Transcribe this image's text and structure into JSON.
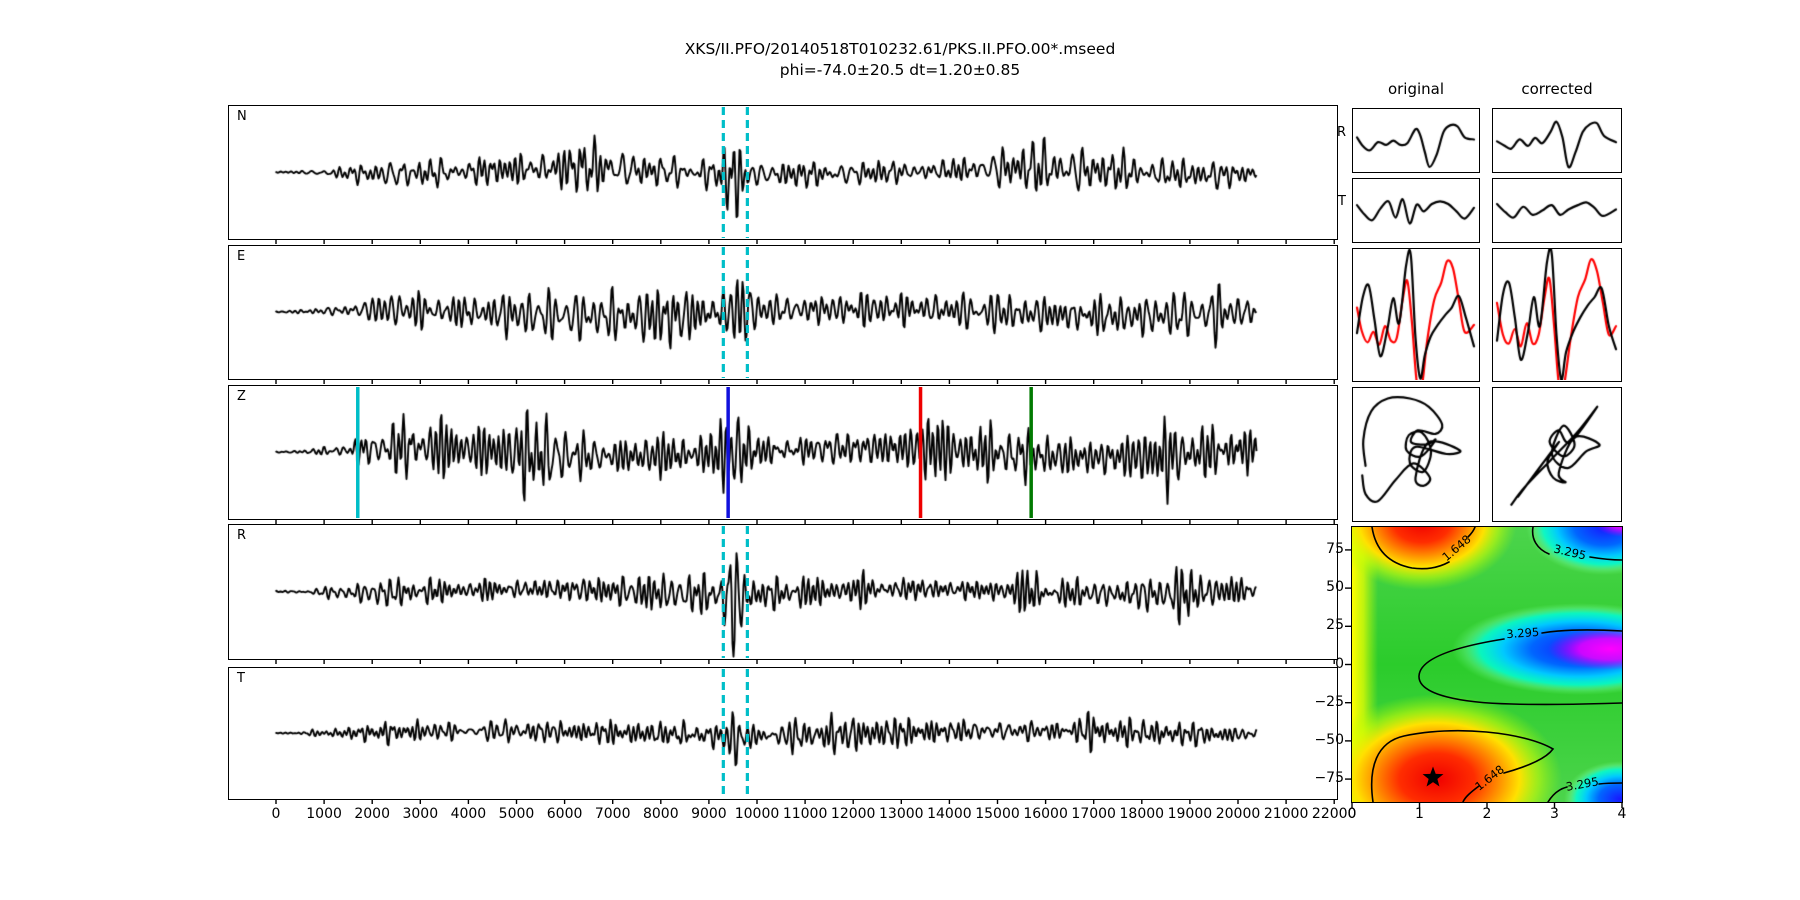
{
  "figure": {
    "title_line1": "XKS/II.PFO/20140518T010232.61/PKS.II.PFO.00*.mseed",
    "title_line2": "phi=-74.0±20.5 dt=1.20±0.85"
  },
  "chart_data": [
    {
      "id": "waveform_panels",
      "type": "line",
      "title": "seismogram component panels",
      "x_unit": "samples",
      "xlim": [
        -1020,
        22200
      ],
      "x_ticks": [
        0,
        1000,
        2000,
        3000,
        4000,
        5000,
        6000,
        7000,
        8000,
        9000,
        10000,
        11000,
        12000,
        13000,
        14000,
        15000,
        16000,
        17000,
        18000,
        19000,
        20000,
        21000,
        22000
      ],
      "trace_color": "#000000",
      "trace_length": 20400,
      "window_lines": {
        "style": "dashed",
        "color": "#00bec8",
        "x": [
          9300,
          9800
        ],
        "panels": [
          "N",
          "E",
          "R",
          "T"
        ]
      },
      "z_marker_lines": [
        {
          "x": 1700,
          "color": "#00bec8"
        },
        {
          "x": 9400,
          "color": "#1111dd"
        },
        {
          "x": 13400,
          "color": "#ee0000"
        },
        {
          "x": 15700,
          "color": "#007a00"
        }
      ],
      "panels": [
        {
          "label": "N",
          "seed": 11,
          "amp": 15,
          "bursts": [
            [
              9550,
              2.4,
              170
            ],
            [
              6500,
              0.7,
              400
            ],
            [
              15500,
              0.5,
              600
            ]
          ]
        },
        {
          "label": "E",
          "seed": 23,
          "amp": 19,
          "bursts": [
            [
              8300,
              1.2,
              300
            ],
            [
              9600,
              2.0,
              160
            ],
            [
              13500,
              0.5,
              500
            ]
          ]
        },
        {
          "label": "Z",
          "seed": 37,
          "amp": 24,
          "bursts": [
            [
              5300,
              1.5,
              300
            ],
            [
              9500,
              1.1,
              250
            ],
            [
              13800,
              0.6,
              400
            ],
            [
              18500,
              0.9,
              300
            ],
            [
              20000,
              1.0,
              250
            ]
          ]
        },
        {
          "label": "R",
          "seed": 53,
          "amp": 15,
          "bursts": [
            [
              9550,
              2.6,
              150
            ],
            [
              15800,
              0.9,
              400
            ],
            [
              18800,
              0.8,
              300
            ]
          ]
        },
        {
          "label": "T",
          "seed": 71,
          "amp": 13,
          "bursts": [
            [
              9550,
              1.5,
              180
            ],
            [
              17000,
              0.6,
              400
            ]
          ]
        }
      ]
    },
    {
      "id": "waveform_comparison",
      "type": "line",
      "col_headers": [
        "original",
        "corrected"
      ],
      "row_labels": [
        "R",
        "T"
      ],
      "colors": {
        "fast": "#000000",
        "slow": "#ff0000"
      },
      "mini": {
        "R_original": [
          [
            0,
            0.1
          ],
          [
            0.05,
            -0.22
          ],
          [
            0.11,
            -0.38
          ],
          [
            0.18,
            -0.08
          ],
          [
            0.25,
            -0.18
          ],
          [
            0.31,
            -0.02
          ],
          [
            0.37,
            -0.18
          ],
          [
            0.43,
            -0.12
          ],
          [
            0.5,
            0.4
          ],
          [
            0.54,
            0.18
          ],
          [
            0.58,
            -0.45
          ],
          [
            0.62,
            -1.0
          ],
          [
            0.68,
            -0.55
          ],
          [
            0.74,
            0.3
          ],
          [
            0.8,
            0.55
          ],
          [
            0.86,
            0.5
          ],
          [
            0.92,
            0.1
          ],
          [
            1,
            0.02
          ]
        ],
        "R_corrected": [
          [
            0,
            -0.05
          ],
          [
            0.06,
            -0.2
          ],
          [
            0.12,
            -0.32
          ],
          [
            0.19,
            0.02
          ],
          [
            0.26,
            -0.22
          ],
          [
            0.32,
            0.08
          ],
          [
            0.38,
            -0.12
          ],
          [
            0.45,
            0.3
          ],
          [
            0.5,
            0.68
          ],
          [
            0.55,
            0.1
          ],
          [
            0.6,
            -1.0
          ],
          [
            0.66,
            -0.45
          ],
          [
            0.72,
            0.3
          ],
          [
            0.78,
            0.58
          ],
          [
            0.84,
            0.62
          ],
          [
            0.9,
            0.15
          ],
          [
            1,
            -0.08
          ]
        ],
        "T_original": [
          [
            0,
            0.18
          ],
          [
            0.06,
            -0.15
          ],
          [
            0.13,
            -0.38
          ],
          [
            0.2,
            0.05
          ],
          [
            0.27,
            0.32
          ],
          [
            0.33,
            -0.28
          ],
          [
            0.39,
            0.4
          ],
          [
            0.45,
            -0.5
          ],
          [
            0.51,
            0.2
          ],
          [
            0.57,
            -0.05
          ],
          [
            0.64,
            0.22
          ],
          [
            0.71,
            0.32
          ],
          [
            0.78,
            0.22
          ],
          [
            0.85,
            -0.05
          ],
          [
            0.92,
            -0.32
          ],
          [
            1,
            0.08
          ]
        ],
        "T_corrected": [
          [
            0,
            0.22
          ],
          [
            0.07,
            -0.08
          ],
          [
            0.14,
            -0.28
          ],
          [
            0.22,
            0.12
          ],
          [
            0.3,
            -0.18
          ],
          [
            0.38,
            -0.02
          ],
          [
            0.46,
            0.18
          ],
          [
            0.53,
            -0.18
          ],
          [
            0.6,
            0.02
          ],
          [
            0.68,
            0.18
          ],
          [
            0.75,
            0.28
          ],
          [
            0.82,
            0.08
          ],
          [
            0.89,
            -0.22
          ],
          [
            1,
            0.02
          ]
        ],
        "overlay_original": {
          "black": [
            [
              0,
              -0.32
            ],
            [
              0.05,
              0.3
            ],
            [
              0.1,
              0.5
            ],
            [
              0.15,
              -0.1
            ],
            [
              0.2,
              -0.72
            ],
            [
              0.26,
              -0.25
            ],
            [
              0.31,
              0.28
            ],
            [
              0.36,
              -0.15
            ],
            [
              0.42,
              0.85
            ],
            [
              0.46,
              1.02
            ],
            [
              0.5,
              -0.4
            ],
            [
              0.54,
              -1.1
            ],
            [
              0.58,
              -0.7
            ],
            [
              0.63,
              -0.38
            ],
            [
              0.69,
              -0.18
            ],
            [
              0.75,
              -0.02
            ],
            [
              0.81,
              0.12
            ],
            [
              0.87,
              0.32
            ],
            [
              0.93,
              -0.05
            ],
            [
              1,
              -0.55
            ]
          ],
          "red": [
            [
              0,
              0.12
            ],
            [
              0.04,
              -0.28
            ],
            [
              0.09,
              -0.48
            ],
            [
              0.14,
              -0.3
            ],
            [
              0.19,
              -0.52
            ],
            [
              0.24,
              -0.2
            ],
            [
              0.29,
              -0.45
            ],
            [
              0.34,
              -0.4
            ],
            [
              0.39,
              0.25
            ],
            [
              0.43,
              0.58
            ],
            [
              0.47,
              -0.15
            ],
            [
              0.51,
              -1.15
            ],
            [
              0.55,
              -1.3
            ],
            [
              0.6,
              -0.45
            ],
            [
              0.66,
              0.25
            ],
            [
              0.72,
              0.55
            ],
            [
              0.77,
              0.92
            ],
            [
              0.82,
              0.8
            ],
            [
              0.87,
              0.25
            ],
            [
              0.92,
              -0.3
            ],
            [
              1,
              -0.18
            ]
          ]
        },
        "overlay_corrected": {
          "black": [
            [
              0,
              -0.45
            ],
            [
              0.05,
              0.35
            ],
            [
              0.1,
              0.55
            ],
            [
              0.15,
              -0.05
            ],
            [
              0.2,
              -0.78
            ],
            [
              0.26,
              -0.3
            ],
            [
              0.31,
              0.3
            ],
            [
              0.36,
              -0.2
            ],
            [
              0.42,
              0.9
            ],
            [
              0.46,
              1.05
            ],
            [
              0.5,
              -0.35
            ],
            [
              0.54,
              -1.12
            ],
            [
              0.58,
              -0.65
            ],
            [
              0.64,
              -0.3
            ],
            [
              0.7,
              -0.05
            ],
            [
              0.76,
              0.15
            ],
            [
              0.82,
              0.3
            ],
            [
              0.88,
              0.45
            ],
            [
              0.94,
              -0.2
            ],
            [
              1,
              -0.6
            ]
          ],
          "red": [
            [
              0,
              0.2
            ],
            [
              0.05,
              -0.35
            ],
            [
              0.1,
              -0.5
            ],
            [
              0.15,
              -0.25
            ],
            [
              0.2,
              -0.55
            ],
            [
              0.25,
              -0.15
            ],
            [
              0.3,
              -0.5
            ],
            [
              0.35,
              -0.35
            ],
            [
              0.4,
              0.3
            ],
            [
              0.44,
              0.62
            ],
            [
              0.48,
              -0.2
            ],
            [
              0.52,
              -1.2
            ],
            [
              0.56,
              -1.25
            ],
            [
              0.62,
              -0.4
            ],
            [
              0.68,
              0.3
            ],
            [
              0.74,
              0.6
            ],
            [
              0.79,
              0.95
            ],
            [
              0.84,
              0.75
            ],
            [
              0.89,
              0.2
            ],
            [
              0.94,
              -0.35
            ],
            [
              1,
              -0.2
            ]
          ]
        },
        "particle_original": [
          [
            0.05,
            0.6
          ],
          [
            0.03,
            0.38
          ],
          [
            0.1,
            0.14
          ],
          [
            0.25,
            0.03
          ],
          [
            0.45,
            0.03
          ],
          [
            0.62,
            0.1
          ],
          [
            0.74,
            0.25
          ],
          [
            0.68,
            0.33
          ],
          [
            0.52,
            0.3
          ],
          [
            0.46,
            0.4
          ],
          [
            0.6,
            0.42
          ],
          [
            0.68,
            0.38
          ],
          [
            0.55,
            0.52
          ],
          [
            0.42,
            0.47
          ],
          [
            0.44,
            0.34
          ],
          [
            0.56,
            0.32
          ],
          [
            0.64,
            0.48
          ],
          [
            0.57,
            0.65
          ],
          [
            0.45,
            0.58
          ],
          [
            0.5,
            0.44
          ],
          [
            0.78,
            0.5
          ],
          [
            0.9,
            0.47
          ],
          [
            0.62,
            0.4
          ],
          [
            0.5,
            0.7
          ],
          [
            0.57,
            0.77
          ],
          [
            0.63,
            0.7
          ],
          [
            0.48,
            0.58
          ],
          [
            0.32,
            0.72
          ],
          [
            0.16,
            0.9
          ],
          [
            0.05,
            0.84
          ],
          [
            0.02,
            0.68
          ]
        ],
        "particle_corrected": [
          [
            0.1,
            0.93
          ],
          [
            0.22,
            0.78
          ],
          [
            0.45,
            0.55
          ],
          [
            0.68,
            0.32
          ],
          [
            0.86,
            0.1
          ],
          [
            0.62,
            0.4
          ],
          [
            0.52,
            0.3
          ],
          [
            0.44,
            0.4
          ],
          [
            0.56,
            0.52
          ],
          [
            0.66,
            0.42
          ],
          [
            0.56,
            0.26
          ],
          [
            0.46,
            0.5
          ],
          [
            0.6,
            0.62
          ],
          [
            0.76,
            0.48
          ],
          [
            0.88,
            0.42
          ],
          [
            0.66,
            0.36
          ],
          [
            0.52,
            0.66
          ],
          [
            0.58,
            0.74
          ],
          [
            0.47,
            0.7
          ],
          [
            0.42,
            0.56
          ],
          [
            0.52,
            0.4
          ],
          [
            0.3,
            0.68
          ],
          [
            0.16,
            0.86
          ]
        ]
      }
    },
    {
      "id": "error_surface",
      "type": "heatmap",
      "x_unit": "dt (s)",
      "y_unit": "phi (deg)",
      "xlim": [
        0,
        4
      ],
      "ylim": [
        -90,
        90
      ],
      "x_ticks": [
        {
          "v": 0,
          "t": "0"
        },
        {
          "v": 1,
          "t": "1"
        },
        {
          "v": 2,
          "t": "2"
        },
        {
          "v": 3,
          "t": "3"
        },
        {
          "v": 4,
          "t": "4"
        }
      ],
      "y_ticks": [
        {
          "v": 75,
          "t": "75"
        },
        {
          "v": 50,
          "t": "50"
        },
        {
          "v": 25,
          "t": "25"
        },
        {
          "v": 0,
          "t": "0"
        },
        {
          "v": -25,
          "t": "−25"
        },
        {
          "v": -50,
          "t": "−50"
        },
        {
          "v": -75,
          "t": "−75"
        }
      ],
      "contour_levels": [
        1.648,
        3.295
      ],
      "contour_label_texts": [
        "1.648",
        "3.295",
        "3.295",
        "1.648",
        "3.295"
      ],
      "best_fit": {
        "dt": 1.2,
        "phi": -74.0
      },
      "star_marker": true,
      "colormap": "rainbow (green background, red minima lower/upper left, blue-magenta maxima middle/right)"
    }
  ]
}
